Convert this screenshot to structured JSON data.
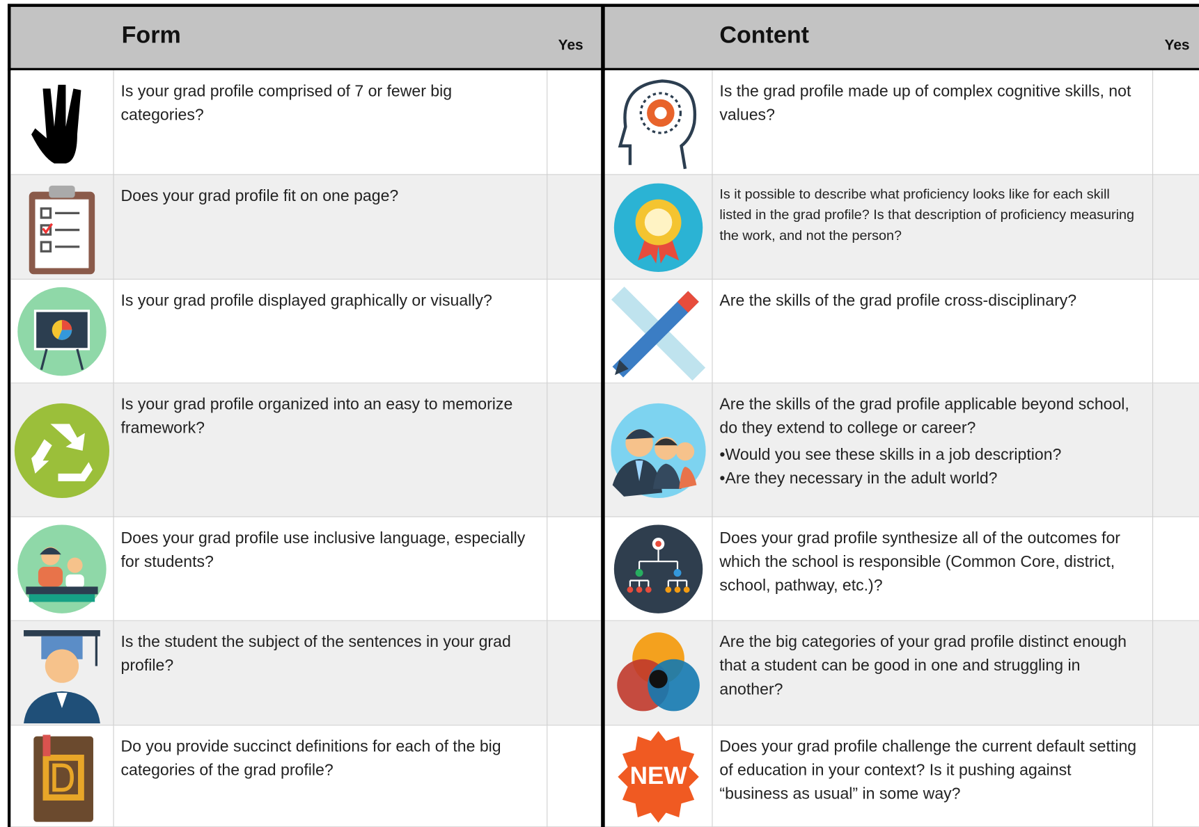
{
  "header": {
    "form_title": "Form",
    "form_yes": "Yes",
    "content_title": "Content",
    "content_yes": "Yes"
  },
  "form": {
    "rows": [
      {
        "question": "Is your grad profile comprised of 7 or fewer big categories?"
      },
      {
        "question": "Does your grad profile fit on one page?"
      },
      {
        "question": "Is your grad profile displayed graphically or visually?"
      },
      {
        "question": "Is your grad profile organized into an easy to memorize framework?"
      },
      {
        "question": "Does your grad profile use inclusive language, especially for students?"
      },
      {
        "question": "Is the student the subject of the sentences in your grad profile?"
      },
      {
        "question": "Do you provide succinct definitions for each of the big categories of the grad profile?"
      }
    ]
  },
  "content": {
    "rows": [
      {
        "question": "Is the grad profile made up of complex cognitive skills, not values?"
      },
      {
        "question": "Is it possible to describe what proficiency looks like for each skill listed in the grad profile?  Is that description of proficiency measuring the work, and not the person?"
      },
      {
        "question": "Are the skills of the grad profile cross-disciplinary?"
      },
      {
        "question": "Are the skills of the grad profile applicable beyond school, do they extend to college or career?",
        "bullets": [
          "Would you see these skills in a job description?",
          "Are they necessary in the adult world?"
        ]
      },
      {
        "question": "Does your grad profile synthesize all of the outcomes for which the school is responsible (Common Core, district, school, pathway, etc.)?"
      },
      {
        "question": "Are the big categories of your grad profile distinct enough that a student can be good in one and struggling in another?"
      },
      {
        "question": "Does your grad profile challenge the current default setting of education in your context?  Is it pushing against “business as usual” in some way?",
        "icon_text": "NEW"
      }
    ]
  }
}
